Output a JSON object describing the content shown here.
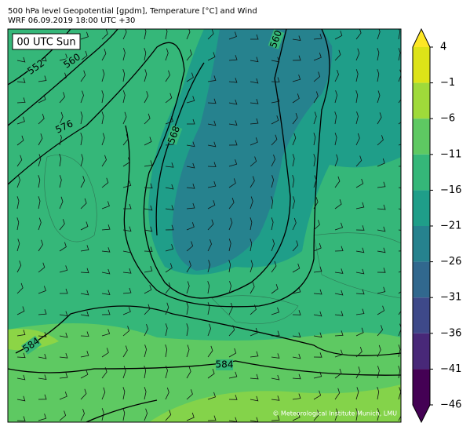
{
  "header": {
    "title_line1": "500 hPa level Geopotential [gpdm], Temperature [°C] and Wind",
    "title_line2": "WRF 06.09.2019 18:00 UTC +30"
  },
  "map": {
    "time_label": "00 UTC Sun",
    "contour_labels": [
      "552",
      "560",
      "576",
      "568",
      "560",
      "584",
      "584"
    ],
    "copyright": "© Meteorological Institute Munich, LMU"
  },
  "colorbar": {
    "ticks": [
      4,
      {
        "value": -1,
        "label": "−1"
      },
      {
        "value": -6,
        "label": "−6"
      },
      {
        "value": -11,
        "label": "−11"
      },
      {
        "value": -16,
        "label": "−16"
      },
      {
        "value": -21,
        "label": "−21"
      },
      {
        "value": -26,
        "label": "−26"
      },
      {
        "value": -31,
        "label": "−31"
      },
      {
        "value": -36,
        "label": "−36"
      },
      {
        "value": -41,
        "label": "−41"
      },
      {
        "value": -46,
        "label": "−46"
      }
    ],
    "colors": [
      "#dde318",
      "#9fda3a",
      "#5ec962",
      "#35b779",
      "#1f9e89",
      "#26828e",
      "#31688e",
      "#3e4989",
      "#482878",
      "#440154"
    ],
    "over_color": "#fde725",
    "under_color": "#440154"
  }
}
